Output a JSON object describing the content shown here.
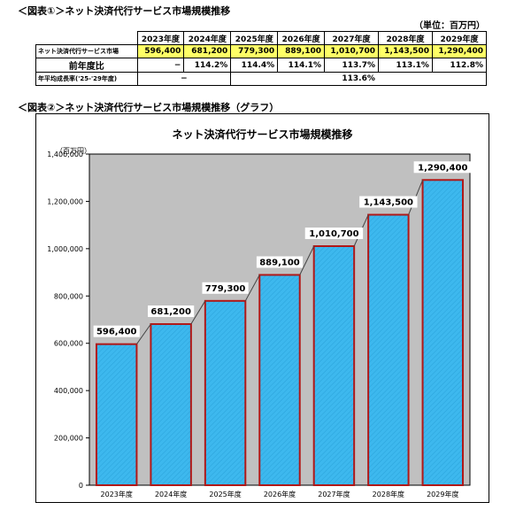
{
  "figure1": {
    "title": "＜図表①＞ネット決済代行サービス市場規模推移",
    "unit": "（単位：百万円）",
    "years": [
      "2023年度",
      "2024年度",
      "2025年度",
      "2026年度",
      "2027年度",
      "2028年度",
      "2029年度"
    ],
    "row_market_label": "ネット決済代行サービス市場",
    "row_market_values": [
      "596,400",
      "681,200",
      "779,300",
      "889,100",
      "1,010,700",
      "1,143,500",
      "1,290,400"
    ],
    "row_yoy_label": "前年度比",
    "row_yoy_values": [
      "−",
      "114.2%",
      "114.4%",
      "114.1%",
      "113.7%",
      "113.1%",
      "112.8%"
    ],
    "row_cagr_label": "年平均成長率('25-'29年度)",
    "row_cagr_first": "−",
    "row_cagr_value": "113.6%"
  },
  "figure2": {
    "title": "＜図表②＞ネット決済代行サービス市場規模推移（グラフ）"
  },
  "chart_data": {
    "type": "bar",
    "title": "ネット決済代行サービス市場規模推移",
    "ylabel": "（百万円）",
    "xlabel": "",
    "categories": [
      "2023年度",
      "2024年度",
      "2025年度",
      "2026年度",
      "2027年度",
      "2028年度",
      "2029年度"
    ],
    "values": [
      596400,
      681200,
      779300,
      889100,
      1010700,
      1143500,
      1290400
    ],
    "data_labels": [
      "596,400",
      "681,200",
      "779,300",
      "889,100",
      "1,010,700",
      "1,143,500",
      "1,290,400"
    ],
    "ylim": [
      0,
      1400000
    ],
    "yticks": [
      0,
      200000,
      400000,
      600000,
      800000,
      1000000,
      1200000,
      1400000
    ],
    "ytick_labels": [
      "0",
      "200,000",
      "400,000",
      "600,000",
      "800,000",
      "1,000,000",
      "1,200,000",
      "1,400,000"
    ],
    "grid": false,
    "colors": {
      "bar_fill": "#3db8ee",
      "bar_edge": "#b01818",
      "plot_bg": "#c0c0c0",
      "connector": "#444444"
    }
  }
}
